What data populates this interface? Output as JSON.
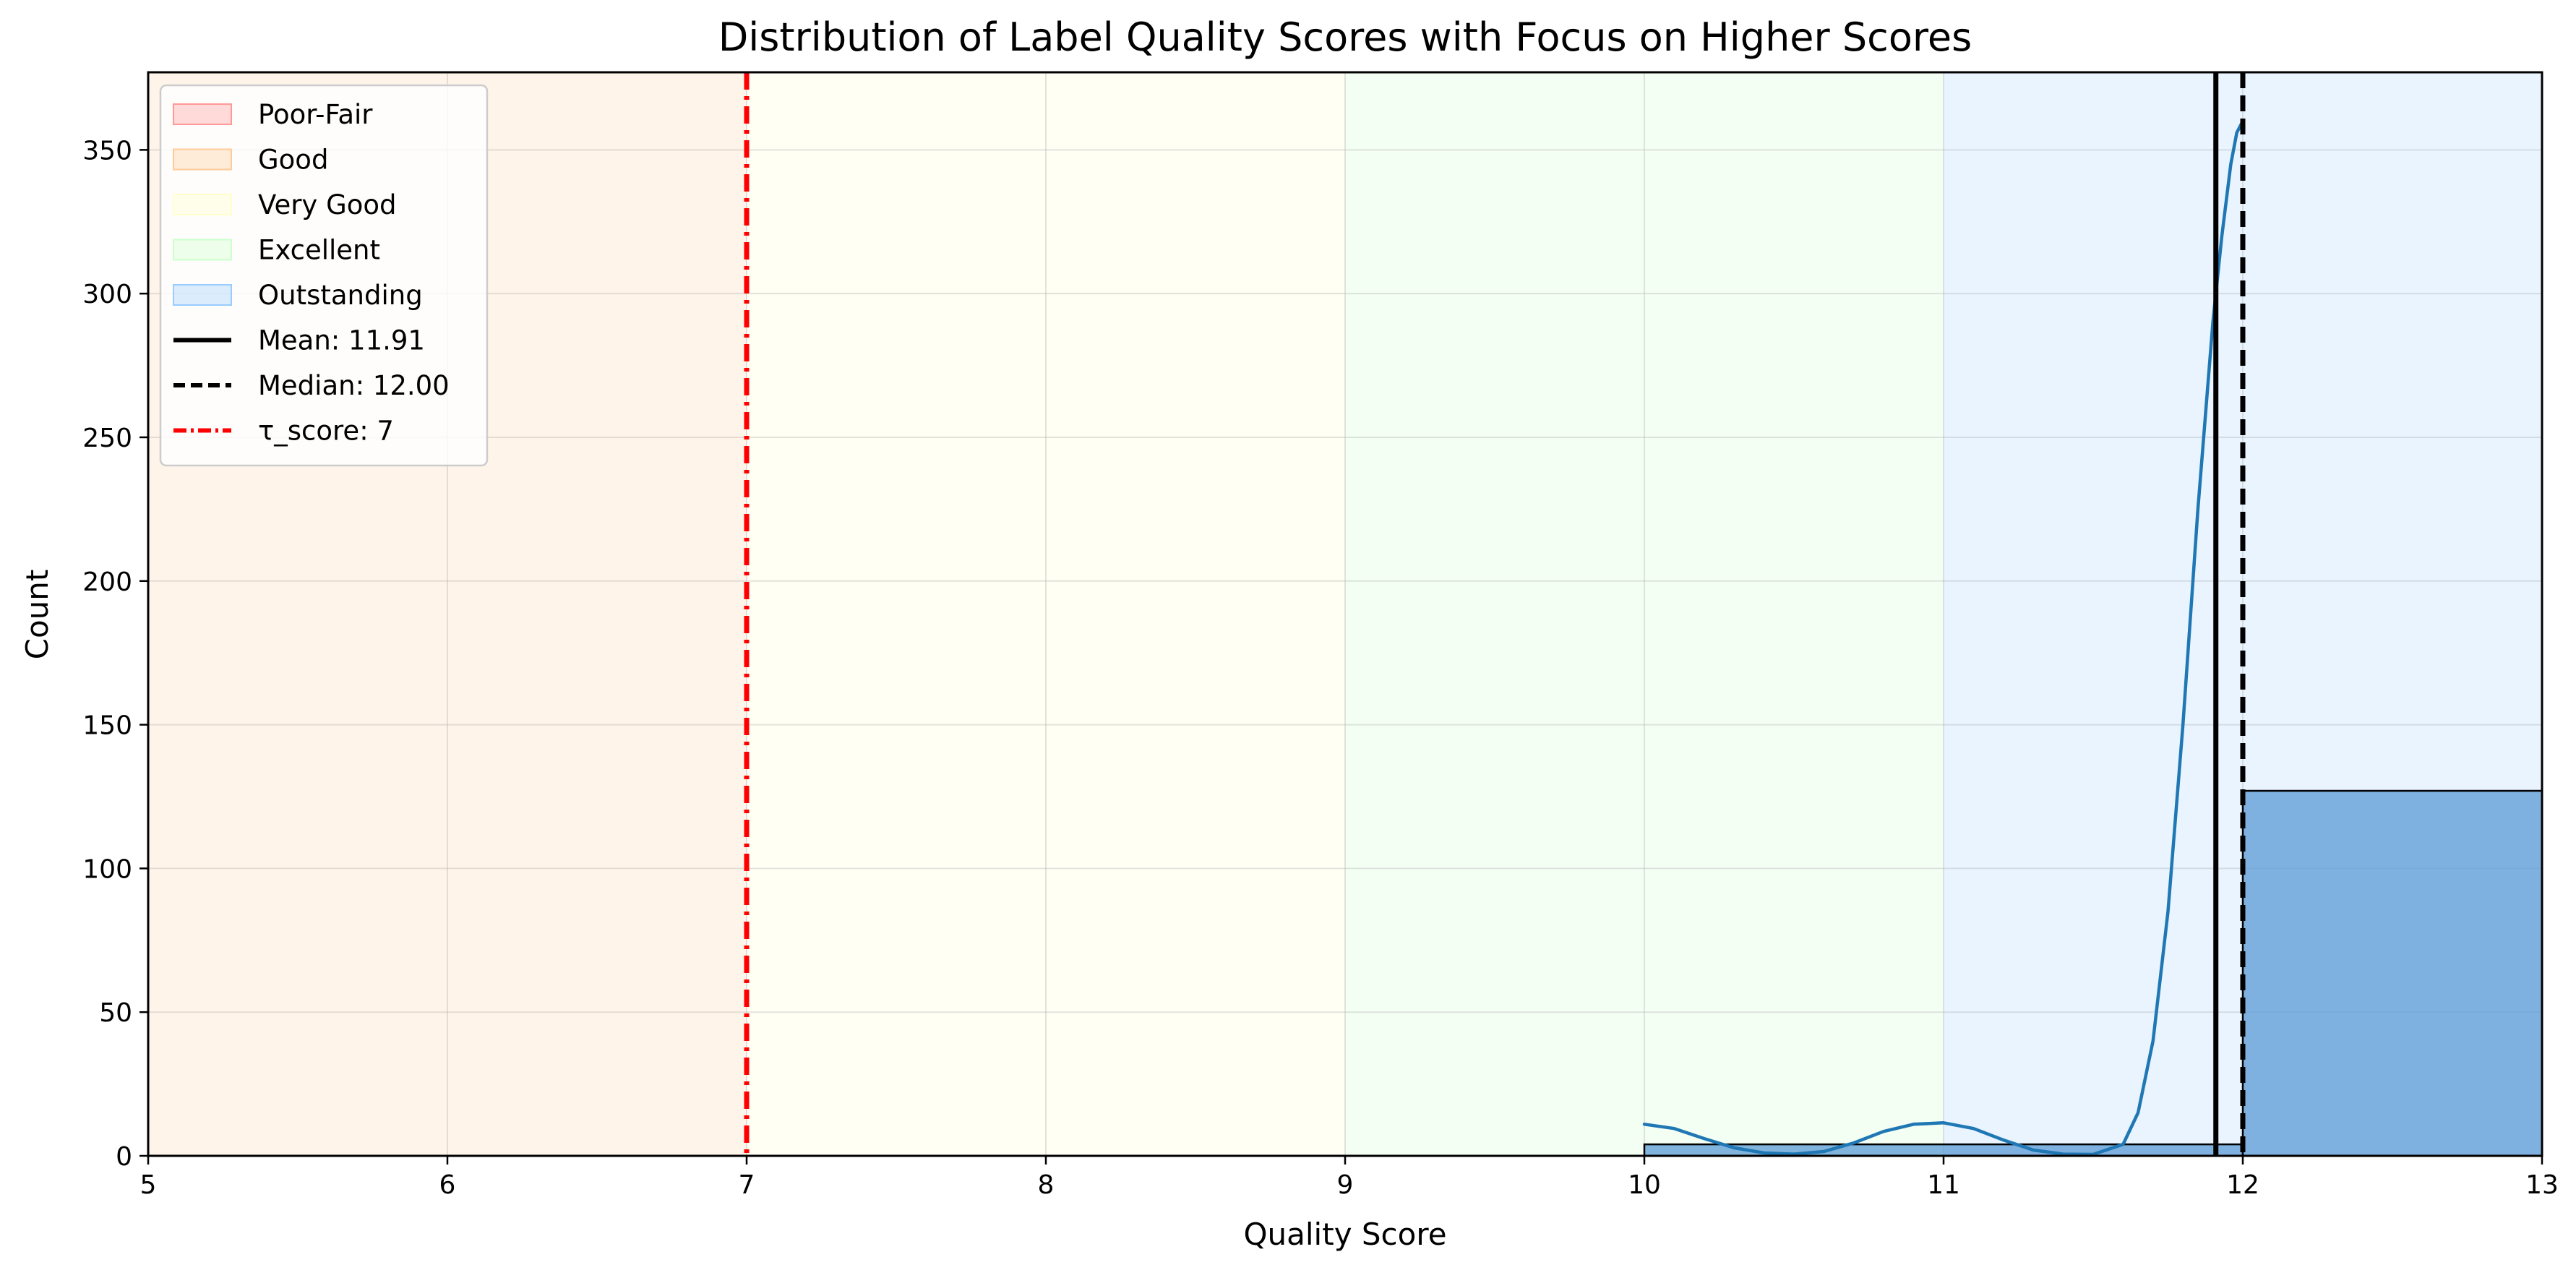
{
  "chart_data": {
    "type": "bar",
    "title": "Distribution of Label Quality Scores with Focus on Higher Scores",
    "xlabel": "Quality Score",
    "ylabel": "Count",
    "xlim": [
      5,
      13
    ],
    "ylim": [
      0,
      377
    ],
    "x_ticks": [
      "5",
      "6",
      "7",
      "8",
      "9",
      "10",
      "11",
      "12",
      "13"
    ],
    "y_ticks": [
      "0",
      "50",
      "100",
      "150",
      "200",
      "250",
      "300",
      "350"
    ],
    "grid": true,
    "legend_placement": "top-left",
    "bands": [
      {
        "name": "Poor-Fair",
        "color": "#ff9999",
        "range": null
      },
      {
        "name": "Good",
        "color": "#ffcc99",
        "range": [
          5,
          7
        ]
      },
      {
        "name": "Very Good",
        "color": "#ffffcc",
        "range": [
          7,
          9
        ]
      },
      {
        "name": "Excellent",
        "color": "#ccffcc",
        "range": [
          9,
          11
        ]
      },
      {
        "name": "Outstanding",
        "color": "#99ccff",
        "range": [
          11,
          13
        ]
      }
    ],
    "bins": [
      {
        "x0": 10,
        "x1": 12,
        "count": 4
      },
      {
        "x0": 12,
        "x1": 13,
        "count": 127
      }
    ],
    "bar_color": "#5b9bd5",
    "kde": {
      "color": "#1f77b4",
      "x": [
        10,
        10.1,
        10.2,
        10.3,
        10.4,
        10.5,
        10.6,
        10.7,
        10.8,
        10.9,
        11,
        11.1,
        11.2,
        11.3,
        11.4,
        11.5,
        11.6,
        11.65,
        11.7,
        11.75,
        11.8,
        11.85,
        11.9,
        11.93,
        11.96,
        11.98,
        12
      ],
      "y": [
        11,
        9.5,
        6,
        2.8,
        1,
        0.6,
        1.5,
        4.5,
        8.5,
        11,
        11.5,
        9.5,
        5.5,
        2,
        0.6,
        0.5,
        4,
        15,
        40,
        85,
        150,
        225,
        290,
        320,
        345,
        356,
        360
      ]
    },
    "lines": [
      {
        "name": "Mean: 11.91",
        "x": 11.91,
        "color": "#000000",
        "style": "solid"
      },
      {
        "name": "Median: 12.00",
        "x": 12.0,
        "color": "#000000",
        "style": "dashed"
      },
      {
        "name": "τ_score: 7",
        "x": 7,
        "color": "#ff0000",
        "style": "dashdot"
      }
    ]
  }
}
